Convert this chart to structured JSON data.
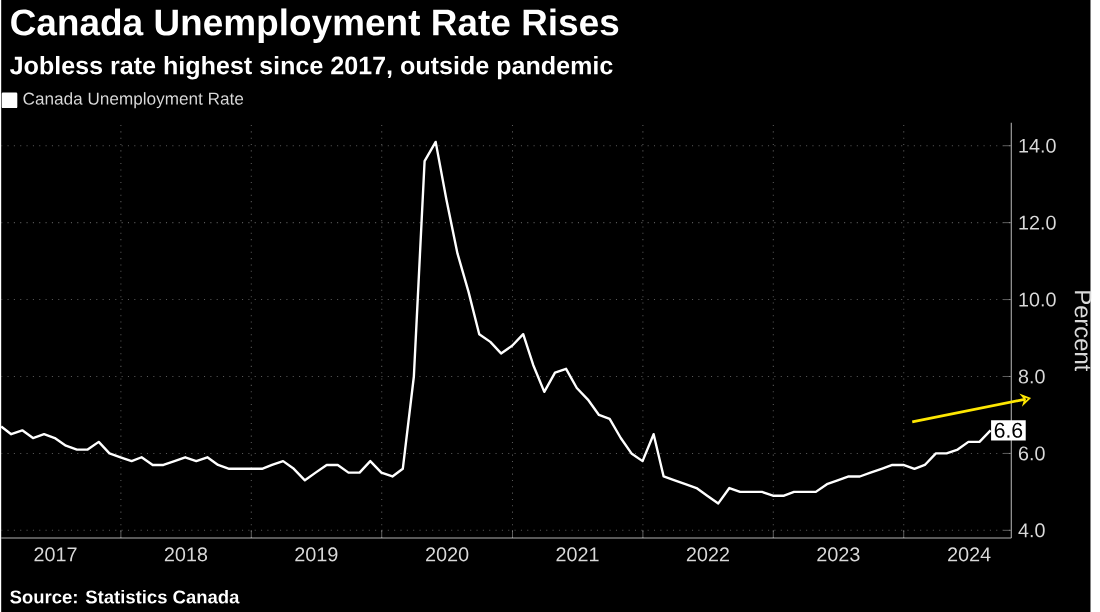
{
  "chart_data": {
    "type": "line",
    "title": "Canada Unemployment Rate Rises",
    "subtitle": "Jobless rate highest since 2017, outside pandemic",
    "ylabel": "Percent",
    "annotations": [
      "Source: Statistics Canada",
      {
        "text": "6.6",
        "x": "2024-08-31",
        "y": 6.6
      }
    ],
    "x": [
      "2017-01-31",
      "2017-02-28",
      "2017-03-31",
      "2017-04-30",
      "2017-05-31",
      "2017-06-30",
      "2017-07-31",
      "2017-08-31",
      "2017-09-30",
      "2017-10-31",
      "2017-11-30",
      "2017-12-31",
      "2018-01-31",
      "2018-02-28",
      "2018-03-31",
      "2018-04-30",
      "2018-05-31",
      "2018-06-30",
      "2018-07-31",
      "2018-08-31",
      "2018-09-30",
      "2018-10-31",
      "2018-11-30",
      "2018-12-31",
      "2019-01-31",
      "2019-02-28",
      "2019-03-31",
      "2019-04-30",
      "2019-05-31",
      "2019-06-30",
      "2019-07-31",
      "2019-08-31",
      "2019-09-30",
      "2019-10-31",
      "2019-11-30",
      "2019-12-31",
      "2020-01-31",
      "2020-02-29",
      "2020-03-31",
      "2020-04-30",
      "2020-05-31",
      "2020-06-30",
      "2020-07-31",
      "2020-08-31",
      "2020-09-30",
      "2020-10-31",
      "2020-11-30",
      "2020-12-31",
      "2021-01-31",
      "2021-02-28",
      "2021-03-31",
      "2021-04-30",
      "2021-05-31",
      "2021-06-30",
      "2021-07-31",
      "2021-08-31",
      "2021-09-30",
      "2021-10-31",
      "2021-11-30",
      "2021-12-31",
      "2022-01-31",
      "2022-02-28",
      "2022-03-31",
      "2022-04-30",
      "2022-05-31",
      "2022-06-30",
      "2022-07-31",
      "2022-08-31",
      "2022-09-30",
      "2022-10-31",
      "2022-11-30",
      "2022-12-31",
      "2023-01-31",
      "2023-02-28",
      "2023-03-31",
      "2023-04-30",
      "2023-05-31",
      "2023-06-30",
      "2023-07-31",
      "2023-08-31",
      "2023-09-30",
      "2023-10-31",
      "2023-11-30",
      "2023-12-31",
      "2024-01-31",
      "2024-02-29",
      "2024-03-31",
      "2024-04-30",
      "2024-05-31",
      "2024-06-30",
      "2024-07-31",
      "2024-08-31"
    ],
    "series": [
      {
        "name": "Canada Unemployment Rate",
        "color": "#ffffff",
        "values": [
          6.7,
          6.5,
          6.6,
          6.4,
          6.5,
          6.4,
          6.2,
          6.1,
          6.1,
          6.3,
          6.0,
          5.9,
          5.8,
          5.9,
          5.7,
          5.7,
          5.8,
          5.9,
          5.8,
          5.9,
          5.7,
          5.6,
          5.6,
          5.6,
          5.6,
          5.7,
          5.8,
          5.6,
          5.3,
          5.5,
          5.7,
          5.7,
          5.5,
          5.5,
          5.8,
          5.5,
          5.4,
          5.6,
          8.0,
          13.6,
          14.1,
          12.6,
          11.2,
          10.2,
          9.1,
          8.9,
          8.6,
          8.8,
          9.1,
          8.3,
          7.6,
          8.1,
          8.2,
          7.7,
          7.4,
          7.0,
          6.9,
          6.4,
          6.0,
          5.8,
          6.5,
          5.4,
          5.3,
          5.2,
          5.1,
          4.9,
          4.7,
          5.1,
          5.0,
          5.0,
          5.0,
          4.9,
          4.9,
          5.0,
          5.0,
          5.0,
          5.2,
          5.3,
          5.4,
          5.4,
          5.5,
          5.6,
          5.7,
          5.7,
          5.6,
          5.7,
          6.0,
          6.0,
          6.1,
          6.3,
          6.3,
          6.6
        ]
      }
    ],
    "xlim": [
      "2017-01-31",
      "2024-10-28"
    ],
    "xticks": [
      {
        "value": "2017-07-02",
        "label": "2017"
      },
      {
        "value": "2018-01-01",
        "label": null
      },
      {
        "value": "2018-07-02",
        "label": "2018"
      },
      {
        "value": "2019-01-01",
        "label": null
      },
      {
        "value": "2019-07-02",
        "label": "2019"
      },
      {
        "value": "2020-01-01",
        "label": null
      },
      {
        "value": "2020-07-02",
        "label": "2020"
      },
      {
        "value": "2021-01-01",
        "label": null
      },
      {
        "value": "2021-07-02",
        "label": "2021"
      },
      {
        "value": "2022-01-01",
        "label": null
      },
      {
        "value": "2022-07-02",
        "label": "2022"
      },
      {
        "value": "2023-01-01",
        "label": null
      },
      {
        "value": "2023-07-02",
        "label": "2023"
      },
      {
        "value": "2024-01-01",
        "label": null
      },
      {
        "value": "2024-07-02",
        "label": "2024"
      }
    ],
    "ylim": [
      3.8,
      14.6
    ],
    "yticks": [
      {
        "value": 4,
        "label": "4.0"
      },
      {
        "value": 6,
        "label": "6.0"
      },
      {
        "value": 8,
        "label": "8.0"
      },
      {
        "value": 10,
        "label": "10.0"
      },
      {
        "value": 12,
        "label": "12.0"
      },
      {
        "value": 14,
        "label": "14.0"
      }
    ],
    "grid": true,
    "legend": "top left",
    "marker": "none",
    "line_style": "solid"
  }
}
